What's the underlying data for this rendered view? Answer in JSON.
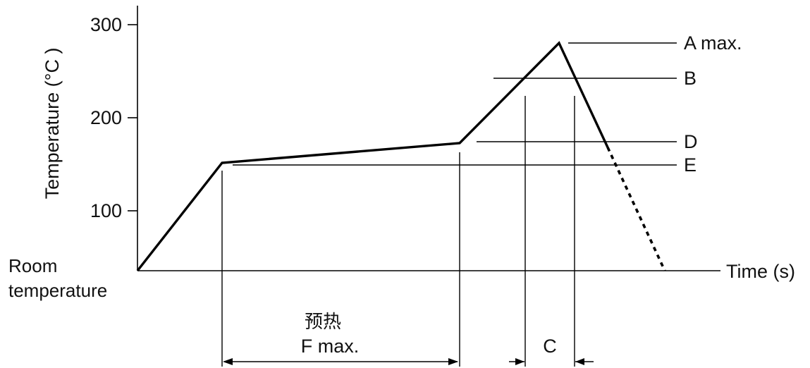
{
  "axes": {
    "y_title": "Temperature (°C )",
    "x_title": "Time (s)",
    "y_ticks": [
      {
        "value": 300,
        "label": "300"
      },
      {
        "value": 200,
        "label": "200"
      },
      {
        "value": 100,
        "label": "100"
      }
    ],
    "origin_label_line1": "Room",
    "origin_label_line2": "temperature"
  },
  "profile": {
    "line_color": "#000000"
  },
  "levels": {
    "a": "A max.",
    "b": "B",
    "d": "D",
    "e": "E"
  },
  "spans": {
    "preheat_cn": "预热",
    "f": "F max.",
    "c": "C"
  }
}
